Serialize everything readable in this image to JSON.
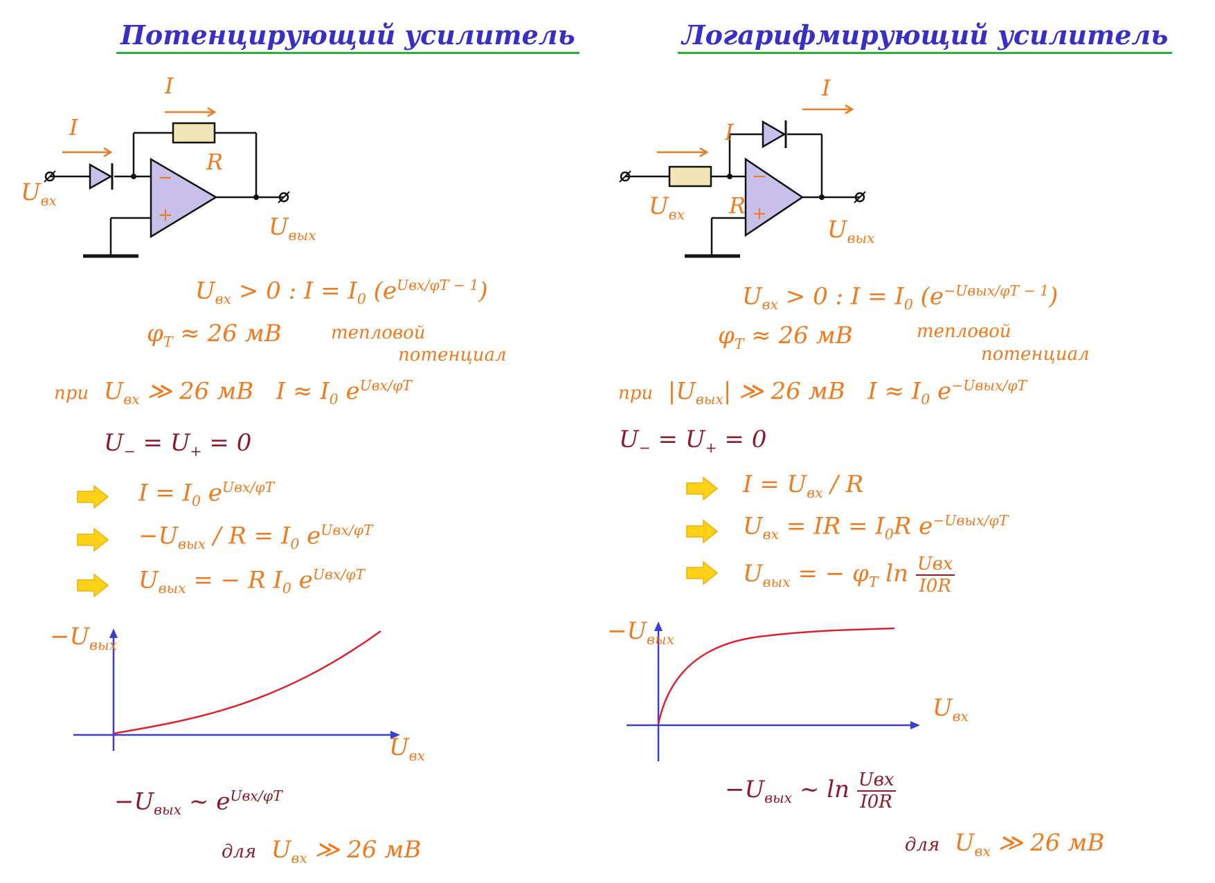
{
  "left": {
    "title": "Потенцирующий усилитель",
    "circuit": {
      "current_label_feedback": "I",
      "current_label_input": "I",
      "resistor_label": "R",
      "input_label": "U",
      "input_sub": "вх",
      "output_label": "U",
      "output_sub": "вых",
      "minus_label": "−",
      "plus_label": "+"
    },
    "eq1": {
      "cond_U": "U",
      "cond_sub": "вх",
      "cond_rest": " > 0 :   I = I",
      "i0_sub": "0",
      "paren": " (e",
      "exp": "Uвх/φT − 1",
      "close": ")"
    },
    "eq2": {
      "phi": "φ",
      "phi_sub": "T",
      "rest": " ≈ 26 мВ",
      "note1": "тепловой",
      "note2": "потенциал"
    },
    "eq3": {
      "pri": "при",
      "U": "U",
      "U_sub": "вх",
      "rest": " ≫ 26 мВ",
      "I": "I ≈ I",
      "I_sub": "0",
      "e": " e",
      "exp": "Uвх/φT"
    },
    "eq4": {
      "text_a": "U",
      "sub_a": "−",
      "mid": " = U",
      "sub_b": "+",
      "end": " = 0"
    },
    "step1": {
      "text": "I = I",
      "sub": "0",
      "e": " e",
      "exp": "Uвх/φT"
    },
    "step2": {
      "pre": "−U",
      "sub": "вых",
      "mid": " / R = I",
      "i0_sub": "0",
      "e": " e",
      "exp": "Uвх/φT"
    },
    "step3": {
      "U": "U",
      "sub": "вых",
      "mid": " = − R I",
      "i0_sub": "0",
      "e": " e",
      "exp": "Uвх/φT"
    },
    "graph": {
      "y_label": "−U",
      "y_sub": "вых",
      "x_label": "U",
      "x_sub": "вх"
    },
    "result": {
      "pre": "−U",
      "sub": "вых",
      "mid": " ~ e",
      "exp": "Uвх/φT"
    },
    "cond": {
      "dlya": "для",
      "U": "U",
      "sub": "вх",
      "rest": " ≫ 26 мВ"
    }
  },
  "right": {
    "title": "Логарифмирующий усилитель",
    "circuit": {
      "current_label_feedback": "I",
      "current_label_input": "I",
      "resistor_label": "R",
      "input_label": "U",
      "input_sub": "вх",
      "output_label": "U",
      "output_sub": "вых",
      "minus_label": "−",
      "plus_label": "+"
    },
    "eq1": {
      "cond_U": "U",
      "cond_sub": "вх",
      "cond_rest": " > 0 :   I = I",
      "i0_sub": "0",
      "paren": " (e",
      "exp": "−Uвых/φT − 1",
      "close": ")"
    },
    "eq2": {
      "phi": "φ",
      "phi_sub": "T",
      "rest": " ≈ 26 мВ",
      "note1": "тепловой",
      "note2": "потенциал"
    },
    "eq3": {
      "pri": "при",
      "U": "|U",
      "U_sub": "вых",
      "rest": "| ≫ 26 мВ",
      "I": "I ≈ I",
      "I_sub": "0",
      "e": " e",
      "exp": "−Uвых/φT"
    },
    "eq4": {
      "text_a": "U",
      "sub_a": "−",
      "mid": " = U",
      "sub_b": "+",
      "end": " = 0"
    },
    "step1": {
      "text": "I = U",
      "sub": "вх",
      "rest": " / R"
    },
    "step2": {
      "U": "U",
      "sub": "вх",
      "mid": " = IR = I",
      "i0_sub": "0",
      "r": "R e",
      "exp": "−Uвых/φT"
    },
    "step3": {
      "U": "U",
      "sub": "вых",
      "mid": " = − φ",
      "phi_sub": "T",
      "ln": " ln ",
      "num": "Uвх",
      "den": "I0R"
    },
    "graph": {
      "y_label": "−U",
      "y_sub": "вых",
      "x_label": "U",
      "x_sub": "вх"
    },
    "result": {
      "pre": "−U",
      "sub": "вых",
      "mid": " ~ ln ",
      "num": "Uвх",
      "den": "I0R"
    },
    "cond": {
      "dlya": "для",
      "U": "U",
      "sub": "вх",
      "rest": " ≫ 26 мВ"
    }
  },
  "colors": {
    "title": "#3a2fc4",
    "underline": "#2fae3a",
    "orange": "#f07a1e",
    "maroon": "#8b1a2b",
    "opamp": "#c8c0ea",
    "resistor": "#f2e6b8",
    "arrow": "#ffd21a",
    "axis": "#3b3fd0",
    "curve": "#e01f2a"
  }
}
